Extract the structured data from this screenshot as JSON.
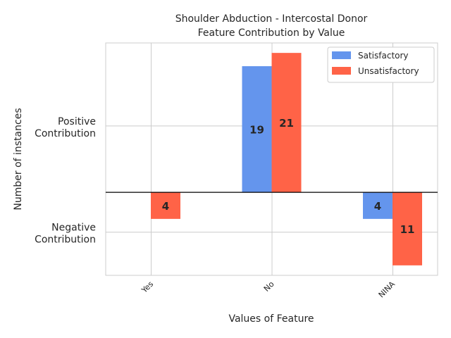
{
  "chart_data": {
    "type": "bar",
    "title": "Shoulder Abduction - Intercostal Donor",
    "subtitle": "Feature Contribution by Value",
    "xlabel": "Values of Feature",
    "ylabel": "Number of instances",
    "categories": [
      "Yes",
      "No",
      "NINA"
    ],
    "y_tick_labels": [
      {
        "value": 10,
        "label": "Positive\nContribution"
      },
      {
        "value": -6,
        "label": "Negative\nContribution"
      }
    ],
    "ylim": [
      -12.5,
      22.5
    ],
    "grid": true,
    "legend_position": "top-right",
    "series": [
      {
        "name": "Satisfactory",
        "color": "#6495ED",
        "values": [
          0,
          19,
          -4
        ],
        "labels": [
          "",
          "19",
          "4"
        ]
      },
      {
        "name": "Unsatisfactory",
        "color": "#FF6347",
        "values": [
          -4,
          21,
          -11
        ],
        "labels": [
          "4",
          "21",
          "11"
        ]
      }
    ]
  }
}
